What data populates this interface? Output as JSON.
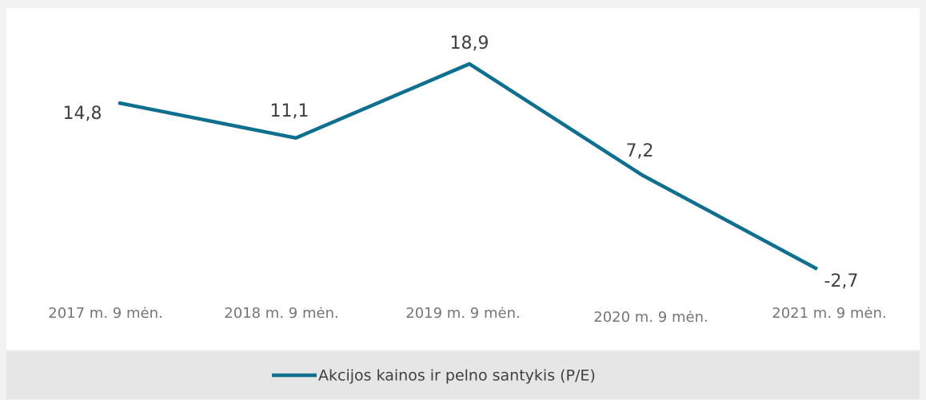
{
  "chart_data": {
    "type": "line",
    "categories": [
      "2017 m. 9 mėn.",
      "2018 m. 9 mėn.",
      "2019 m. 9 mėn.",
      "2020 m. 9 mėn.",
      "2021 m. 9 mėn."
    ],
    "series": [
      {
        "name": "Akcijos kainos ir pelno santykis (P/E)",
        "color": "#0e6f8e",
        "values": [
          14.8,
          11.1,
          18.9,
          7.2,
          -2.7
        ],
        "value_labels": [
          "14,8",
          "11,1",
          "18,9",
          "7,2",
          "-2,7"
        ]
      }
    ],
    "legend": "bottom"
  }
}
